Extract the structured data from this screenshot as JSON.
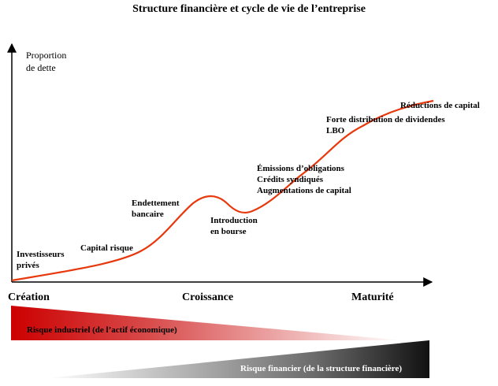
{
  "title": "Structure financière et cycle de vie de l’entreprise",
  "y_axis_label": [
    "Proportion",
    "de dette"
  ],
  "curve_color": "#e8380d",
  "stages": [
    {
      "lines": [
        "Investisseurs",
        "privés"
      ]
    },
    {
      "lines": [
        "Capital risque"
      ]
    },
    {
      "lines": [
        "Endettement",
        "bancaire"
      ]
    },
    {
      "lines": [
        "Introduction",
        "en bourse"
      ]
    },
    {
      "lines": [
        "Émissions d’obligations",
        "Crédits syndiqués",
        "Augmentations de capital"
      ]
    },
    {
      "lines": [
        "Forte distribution de dividendes",
        "LBO"
      ]
    },
    {
      "lines": [
        "Réductions de capital"
      ]
    }
  ],
  "phases": [
    "Création",
    "Croissance",
    "Maturité"
  ],
  "risks": {
    "industrial": {
      "label": "Risque industriel (de l’actif économique)",
      "color": "#cc0000"
    },
    "financial": {
      "label": "Risque financier (de la structure financière)",
      "color": "#111111"
    }
  }
}
